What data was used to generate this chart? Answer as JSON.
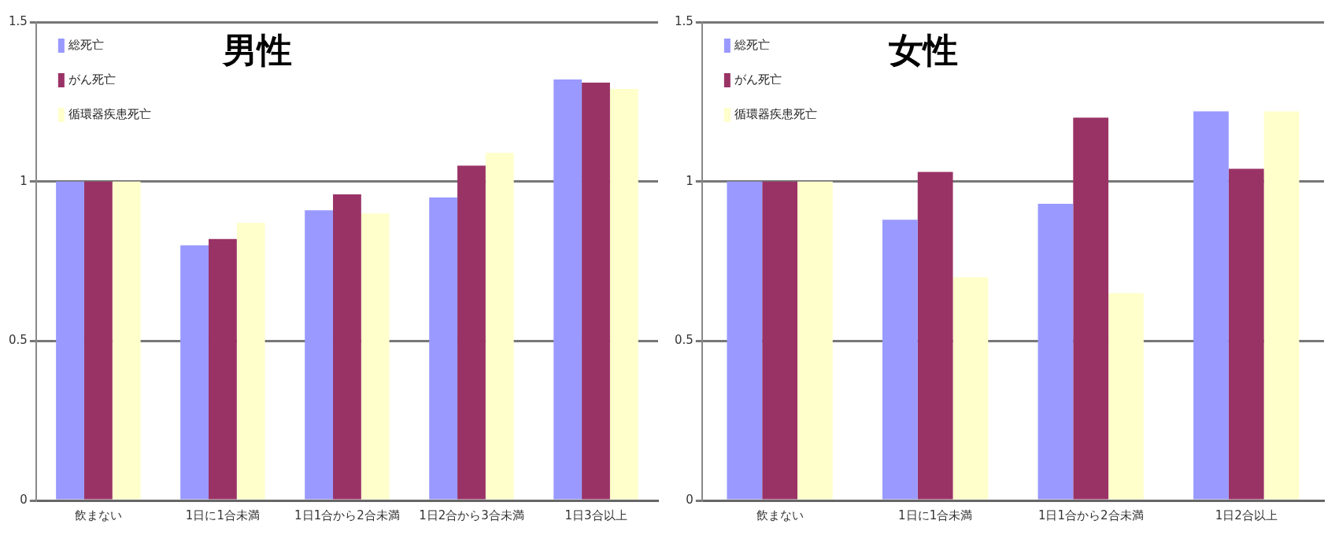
{
  "chart_data": [
    {
      "type": "bar",
      "title": "男性",
      "categories": [
        "飲まない",
        "1日に1合未満",
        "1日1合から2合未満",
        "1日2合から3合未満",
        "1日3合以上"
      ],
      "series": [
        {
          "name": "総死亡",
          "color": "#9999ff",
          "values": [
            1,
            0.8,
            0.91,
            0.95,
            1.32
          ]
        },
        {
          "name": "がん死亡",
          "color": "#993366",
          "values": [
            1,
            0.82,
            0.96,
            1.05,
            1.31
          ]
        },
        {
          "name": "循環器疾患死亡",
          "color": "#ffffcc",
          "values": [
            1,
            0.87,
            0.9,
            1.09,
            1.29
          ]
        }
      ],
      "ylim": [
        0,
        1.5
      ],
      "yticks": [
        0,
        0.5,
        1,
        1.5
      ],
      "grid": "y",
      "legend": "top left"
    },
    {
      "type": "bar",
      "title": "女性",
      "categories": [
        "飲まない",
        "1日に1合未満",
        "1日1合から2合未満",
        "1日2合以上"
      ],
      "series": [
        {
          "name": "総死亡",
          "color": "#9999ff",
          "values": [
            1,
            0.88,
            0.93,
            1.22
          ]
        },
        {
          "name": "がん死亡",
          "color": "#993366",
          "values": [
            1,
            1.03,
            1.2,
            1.04
          ]
        },
        {
          "name": "循環器疾患死亡",
          "color": "#ffffcc",
          "values": [
            1,
            0.7,
            0.65,
            1.22
          ]
        }
      ],
      "ylim": [
        0,
        1.5
      ],
      "yticks": [
        0,
        0.5,
        1,
        1.5
      ],
      "grid": "y",
      "legend": "top left"
    }
  ]
}
